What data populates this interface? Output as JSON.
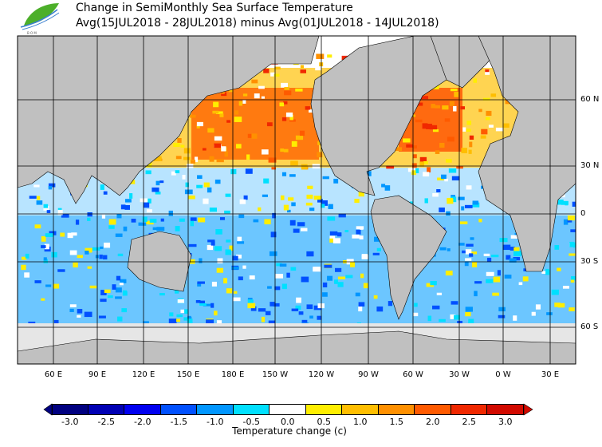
{
  "header": {
    "title_line1": "Change in SemiMonthly Sea Surface Temperature",
    "title_line2": "Avg(15JUL2018 - 28JUL2018) minus Avg(01JUL2018 - 14JUL2018)",
    "logo_text": "BOM"
  },
  "map": {
    "lat_labels": [
      "60 N",
      "30 N",
      "0",
      "30 S",
      "60 S"
    ],
    "lon_labels": [
      "60 E",
      "90 E",
      "120 E",
      "150 E",
      "180 E",
      "150 W",
      "120 W",
      "90 W",
      "60 W",
      "30 W",
      "0 W",
      "30 E"
    ],
    "land_color": "#c0c0c0",
    "ice_color": "#e6e6e6"
  },
  "colorbar": {
    "labels": [
      "-3.0",
      "-2.5",
      "-2.0",
      "-1.5",
      "-1.0",
      "-0.5",
      "0.0",
      "0.5",
      "1.0",
      "1.5",
      "2.0",
      "2.5",
      "3.0"
    ],
    "colors": [
      "#000080",
      "#0000b4",
      "#0000f0",
      "#0050ff",
      "#0096ff",
      "#00e0ff",
      "#ffffff",
      "#ffee00",
      "#ffbe00",
      "#ff9000",
      "#ff5a00",
      "#f02800",
      "#d20a00"
    ],
    "title": "Temperature change  (c)"
  }
}
